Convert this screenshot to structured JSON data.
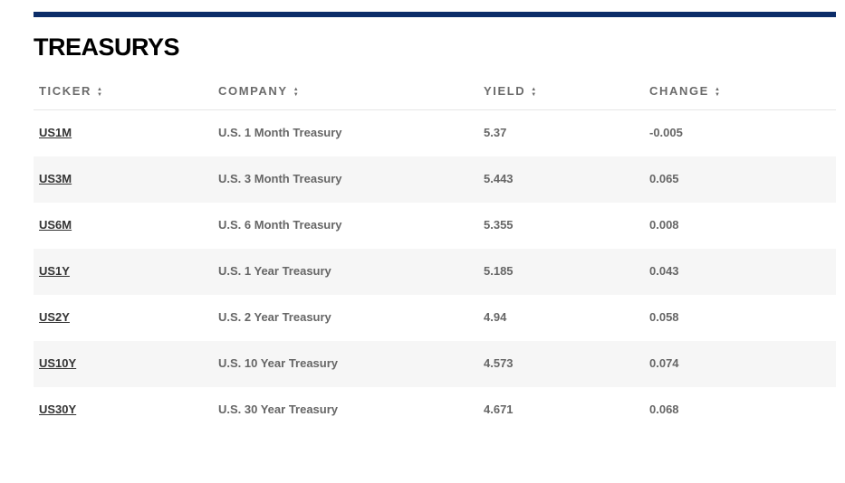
{
  "colors": {
    "accent_bar": "#0c2d69",
    "row_alt_bg": "#f6f6f6"
  },
  "title": "TREASURYS",
  "columns": [
    {
      "label": "TICKER",
      "sort_icon": "sort-arrows-icon"
    },
    {
      "label": "COMPANY",
      "sort_icon": "sort-arrows-icon"
    },
    {
      "label": "YIELD",
      "sort_icon": "sort-arrows-icon"
    },
    {
      "label": "CHANGE",
      "sort_icon": "sort-arrows-icon"
    }
  ],
  "rows": [
    {
      "ticker": "US1M",
      "company": "U.S. 1 Month Treasury",
      "yield": "5.37",
      "change": "-0.005"
    },
    {
      "ticker": "US3M",
      "company": "U.S. 3 Month Treasury",
      "yield": "5.443",
      "change": "0.065"
    },
    {
      "ticker": "US6M",
      "company": "U.S. 6 Month Treasury",
      "yield": "5.355",
      "change": "0.008"
    },
    {
      "ticker": "US1Y",
      "company": "U.S. 1 Year Treasury",
      "yield": "5.185",
      "change": "0.043"
    },
    {
      "ticker": "US2Y",
      "company": "U.S. 2 Year Treasury",
      "yield": "4.94",
      "change": "0.058"
    },
    {
      "ticker": "US10Y",
      "company": "U.S. 10 Year Treasury",
      "yield": "4.573",
      "change": "0.074"
    },
    {
      "ticker": "US30Y",
      "company": "U.S. 30 Year Treasury",
      "yield": "4.671",
      "change": "0.068"
    }
  ]
}
